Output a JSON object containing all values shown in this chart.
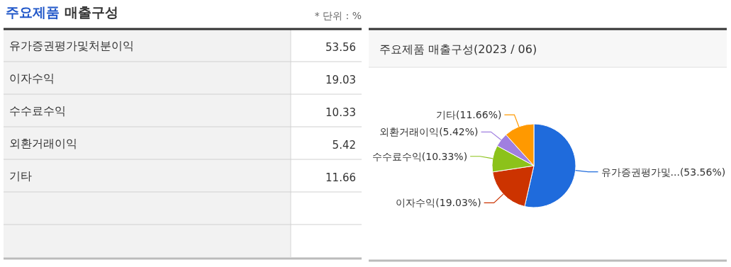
{
  "chart_data": [
    {
      "type": "other",
      "title": "주요제품 매출구성",
      "annotations": [
        "* 단위 : %"
      ],
      "categories": [
        "유가증권평가및처분이익",
        "이자수익",
        "수수료수익",
        "외환거래이익",
        "기타"
      ],
      "values": [
        53.56,
        19.03,
        10.33,
        5.42,
        11.66
      ],
      "data_labels": true
    },
    {
      "type": "pie",
      "title": "주요제품 매출구성(2023 / 06)",
      "categories": [
        "유가증권평가및...",
        "이자수익",
        "수수료수익",
        "외환거래이익",
        "기타"
      ],
      "values": [
        53.56,
        19.03,
        10.33,
        5.42,
        11.66
      ],
      "colors": [
        "#1f6bdc",
        "#cc3300",
        "#8cc21a",
        "#a07fe0",
        "#ff9900"
      ],
      "value_labels": [
        "(53.56%)",
        "(19.03%)",
        "(10.33%)",
        "(5.42%)",
        "(11.66%)"
      ]
    }
  ]
}
